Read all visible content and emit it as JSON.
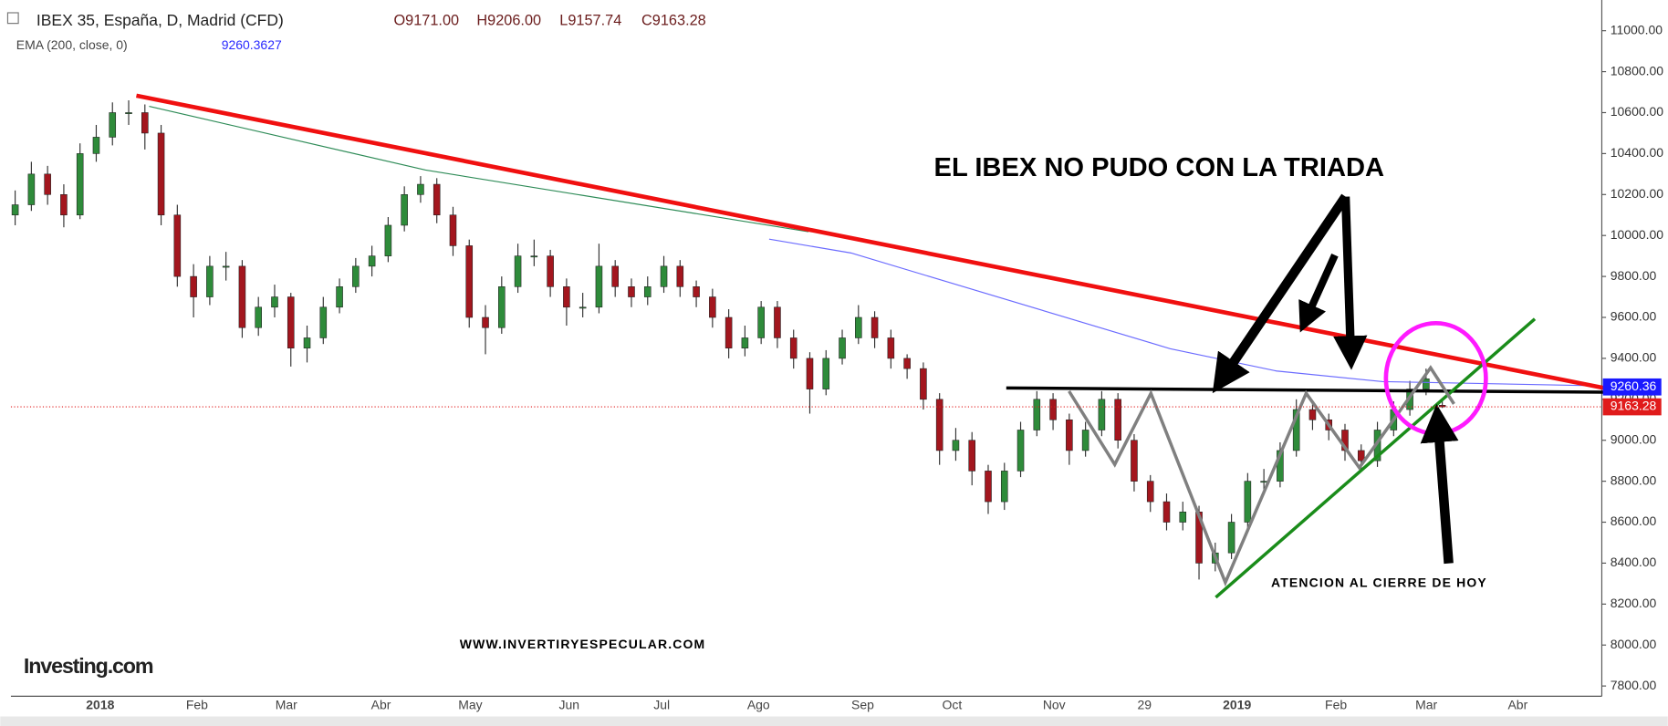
{
  "chart_data": {
    "type": "candlestick",
    "title": "IBEX 35, España, D, Madrid (CFD)",
    "ohlc_header": [
      "O9171.00",
      "H9206.00",
      "L9157.74",
      "C9163.28"
    ],
    "indicator": "EMA (200, close, 0)",
    "indicator_value": "9260.3627",
    "up_color": "#2e8b3a",
    "down_color": "#a3161e",
    "candles": [
      [
        10100,
        10220,
        10050,
        10150
      ],
      [
        10150,
        10360,
        10120,
        10300
      ],
      [
        10300,
        10340,
        10150,
        10200
      ],
      [
        10200,
        10250,
        10040,
        10100
      ],
      [
        10100,
        10450,
        10080,
        10400
      ],
      [
        10400,
        10540,
        10360,
        10480
      ],
      [
        10480,
        10650,
        10440,
        10600
      ],
      [
        10600,
        10660,
        10540,
        10600
      ],
      [
        10600,
        10640,
        10420,
        10500
      ],
      [
        10500,
        10540,
        10050,
        10100
      ],
      [
        10100,
        10150,
        9750,
        9800
      ],
      [
        9800,
        9860,
        9600,
        9700
      ],
      [
        9700,
        9900,
        9660,
        9850
      ],
      [
        9850,
        9920,
        9780,
        9850
      ],
      [
        9850,
        9880,
        9500,
        9550
      ],
      [
        9550,
        9700,
        9510,
        9650
      ],
      [
        9650,
        9760,
        9600,
        9700
      ],
      [
        9700,
        9720,
        9360,
        9450
      ],
      [
        9450,
        9560,
        9380,
        9500
      ],
      [
        9500,
        9700,
        9470,
        9650
      ],
      [
        9650,
        9790,
        9620,
        9750
      ],
      [
        9750,
        9890,
        9720,
        9850
      ],
      [
        9850,
        9950,
        9800,
        9900
      ],
      [
        9900,
        10090,
        9870,
        10050
      ],
      [
        10050,
        10240,
        10020,
        10200
      ],
      [
        10200,
        10290,
        10160,
        10250
      ],
      [
        10250,
        10280,
        10060,
        10100
      ],
      [
        10100,
        10140,
        9900,
        9950
      ],
      [
        9950,
        9980,
        9550,
        9600
      ],
      [
        9600,
        9660,
        9420,
        9550
      ],
      [
        9550,
        9800,
        9520,
        9750
      ],
      [
        9750,
        9960,
        9720,
        9900
      ],
      [
        9900,
        9980,
        9850,
        9900
      ],
      [
        9900,
        9930,
        9700,
        9750
      ],
      [
        9750,
        9790,
        9560,
        9650
      ],
      [
        9650,
        9720,
        9600,
        9650
      ],
      [
        9650,
        9960,
        9620,
        9850
      ],
      [
        9850,
        9880,
        9700,
        9750
      ],
      [
        9750,
        9790,
        9650,
        9700
      ],
      [
        9700,
        9800,
        9660,
        9750
      ],
      [
        9750,
        9900,
        9720,
        9850
      ],
      [
        9850,
        9880,
        9700,
        9750
      ],
      [
        9750,
        9780,
        9650,
        9700
      ],
      [
        9700,
        9740,
        9550,
        9600
      ],
      [
        9600,
        9640,
        9400,
        9450
      ],
      [
        9450,
        9560,
        9410,
        9500
      ],
      [
        9500,
        9680,
        9470,
        9650
      ],
      [
        9650,
        9680,
        9450,
        9500
      ],
      [
        9500,
        9540,
        9350,
        9400
      ],
      [
        9400,
        9430,
        9130,
        9250
      ],
      [
        9250,
        9440,
        9220,
        9400
      ],
      [
        9400,
        9540,
        9370,
        9500
      ],
      [
        9500,
        9660,
        9470,
        9600
      ],
      [
        9600,
        9630,
        9450,
        9500
      ],
      [
        9500,
        9540,
        9350,
        9400
      ],
      [
        9400,
        9420,
        9300,
        9350
      ],
      [
        9350,
        9380,
        9150,
        9200
      ],
      [
        9200,
        9230,
        8880,
        8950
      ],
      [
        8950,
        9060,
        8900,
        9000
      ],
      [
        9000,
        9040,
        8780,
        8850
      ],
      [
        8850,
        8880,
        8640,
        8700
      ],
      [
        8700,
        8890,
        8660,
        8850
      ],
      [
        8850,
        9090,
        8820,
        9050
      ],
      [
        9050,
        9240,
        9020,
        9200
      ],
      [
        9200,
        9230,
        9050,
        9100
      ],
      [
        9100,
        9130,
        8880,
        8950
      ],
      [
        8950,
        9090,
        8920,
        9050
      ],
      [
        9050,
        9240,
        9020,
        9200
      ],
      [
        9200,
        9230,
        8960,
        9000
      ],
      [
        9000,
        9030,
        8750,
        8800
      ],
      [
        8800,
        8830,
        8650,
        8700
      ],
      [
        8700,
        8740,
        8560,
        8600
      ],
      [
        8600,
        8700,
        8560,
        8650
      ],
      [
        8650,
        8680,
        8320,
        8400
      ],
      [
        8400,
        8500,
        8360,
        8450
      ],
      [
        8450,
        8640,
        8420,
        8600
      ],
      [
        8600,
        8840,
        8570,
        8800
      ],
      [
        8800,
        8860,
        8750,
        8800
      ],
      [
        8800,
        8990,
        8770,
        8950
      ],
      [
        8950,
        9200,
        8920,
        9150
      ],
      [
        9150,
        9180,
        9050,
        9100
      ],
      [
        9100,
        9130,
        9000,
        9050
      ],
      [
        9050,
        9080,
        8900,
        8950
      ],
      [
        8950,
        8980,
        8850,
        8900
      ],
      [
        8900,
        9090,
        8870,
        9050
      ],
      [
        9050,
        9190,
        9020,
        9150
      ],
      [
        9150,
        9290,
        9120,
        9250
      ],
      [
        9250,
        9350,
        9220,
        9300
      ],
      [
        9171,
        9206,
        9157.74,
        9163.28
      ]
    ],
    "ylim": [
      7750,
      11150
    ],
    "yticks": [
      {
        "value": 7800,
        "label": "7800.00"
      },
      {
        "value": 8000,
        "label": "8000.00"
      },
      {
        "value": 8200,
        "label": "8200.00"
      },
      {
        "value": 8400,
        "label": "8400.00"
      },
      {
        "value": 8600,
        "label": "8600.00"
      },
      {
        "value": 8800,
        "label": "8800.00"
      },
      {
        "value": 9000,
        "label": "9000.00"
      },
      {
        "value": 9200,
        "label": "9200.00"
      },
      {
        "value": 9400,
        "label": "9400.00"
      },
      {
        "value": 9600,
        "label": "9600.00"
      },
      {
        "value": 9800,
        "label": "9800.00"
      },
      {
        "value": 10000,
        "label": "10000.00"
      },
      {
        "value": 10200,
        "label": "10200.00"
      },
      {
        "value": 10400,
        "label": "10400.00"
      },
      {
        "value": 10600,
        "label": "10600.00"
      },
      {
        "value": 10800,
        "label": "10800.00"
      },
      {
        "value": 11000,
        "label": "11000.00"
      }
    ],
    "x_labels": [
      "2018",
      "Feb",
      "Mar",
      "Abr",
      "May",
      "Jun",
      "Jul",
      "Ago",
      "Sep",
      "Oct",
      "Nov",
      "29",
      "2019",
      "Feb",
      "Mar",
      "Abr"
    ],
    "price_tags": [
      {
        "value": 9260.36,
        "label": "9260.36",
        "color": "#1a1aff"
      },
      {
        "value": 9163.28,
        "label": "9163.28",
        "color": "#e01b1b"
      }
    ],
    "annotations": [
      "EL IBEX NO PUDO CON LA TRIADA",
      "ATENCION AL CIERRE DE HOY",
      "WWW.INVERTIRYESPECULAR.COM"
    ],
    "logo": "Investing.com"
  }
}
